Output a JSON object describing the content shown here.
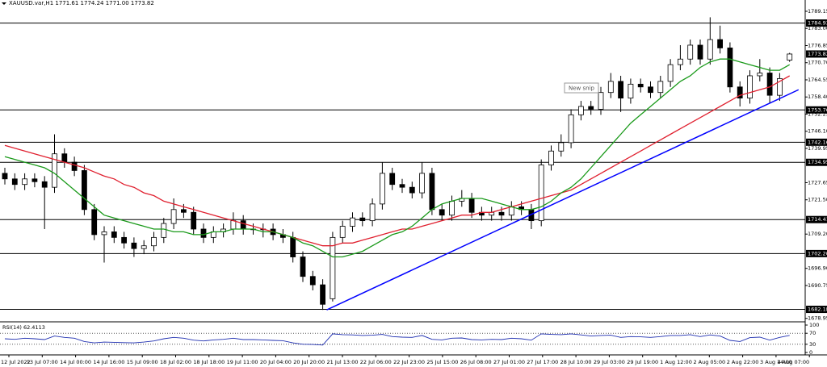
{
  "chart_data": {
    "type": "candlestick",
    "title": "XAUUSD.var,H1  1771.61 1774.24 1771.00 1773.82",
    "tooltip": "New snip",
    "open": [
      1731,
      1729,
      1727,
      1729,
      1728,
      1726,
      1738,
      1735,
      1732,
      1718,
      1709,
      1710,
      1708,
      1706,
      1704,
      1705,
      1708,
      1713,
      1718,
      1717,
      1711,
      1708,
      1710,
      1711,
      1714,
      1711,
      1711,
      1711,
      1709,
      1708,
      1701,
      1694,
      1691,
      1686,
      1708,
      1712,
      1715,
      1714,
      1720,
      1731,
      1727,
      1726,
      1724,
      1731,
      1718,
      1716,
      1721,
      1722,
      1717,
      1716,
      1717,
      1716,
      1719,
      1718,
      1714,
      1734,
      1739,
      1742,
      1752,
      1755,
      1754,
      1760,
      1764,
      1758,
      1763,
      1762,
      1760,
      1764,
      1770,
      1772,
      1777,
      1772,
      1779,
      1776,
      1762,
      1758,
      1766,
      1767,
      1759,
      1771.61
    ],
    "high": [
      1733,
      1731,
      1731,
      1731,
      1730,
      1745,
      1740,
      1737,
      1734,
      1720,
      1712,
      1712,
      1710,
      1708,
      1707,
      1710,
      1715,
      1722,
      1720,
      1719,
      1713,
      1712,
      1713,
      1717,
      1716,
      1713,
      1713,
      1713,
      1711,
      1710,
      1703,
      1696,
      1693,
      1710,
      1714,
      1717,
      1717,
      1722,
      1735,
      1733,
      1729,
      1728,
      1735,
      1733,
      1720,
      1723,
      1725,
      1724,
      1719,
      1719,
      1719,
      1721,
      1721,
      1720,
      1736,
      1741,
      1745,
      1754,
      1757,
      1757,
      1762,
      1767,
      1766,
      1765,
      1765,
      1764,
      1766,
      1772,
      1777,
      1779,
      1779,
      1787,
      1784,
      1778,
      1764,
      1768,
      1772,
      1769,
      1767,
      1774.24
    ],
    "low": [
      1727,
      1725,
      1725,
      1726,
      1711,
      1724,
      1733,
      1730,
      1716,
      1707,
      1699,
      1706,
      1704,
      1701,
      1702,
      1703,
      1706,
      1711,
      1715,
      1709,
      1706,
      1706,
      1708,
      1709,
      1709,
      1709,
      1708,
      1707,
      1706,
      1699,
      1692,
      1689,
      1682,
      1685,
      1706,
      1710,
      1712,
      1712,
      1718,
      1725,
      1724,
      1722,
      1722,
      1716,
      1714,
      1714,
      1719,
      1715,
      1714,
      1714,
      1714,
      1714,
      1716,
      1711,
      1712,
      1732,
      1737,
      1740,
      1750,
      1752,
      1752,
      1758,
      1753,
      1756,
      1760,
      1758,
      1758,
      1762,
      1768,
      1770,
      1770,
      1770,
      1774,
      1760,
      1755,
      1756,
      1764,
      1756,
      1757,
      1771
    ],
    "close": [
      1729,
      1727,
      1729,
      1728,
      1726,
      1738,
      1735,
      1732,
      1718,
      1709,
      1710,
      1708,
      1706,
      1704,
      1705,
      1708,
      1713,
      1718,
      1717,
      1711,
      1708,
      1710,
      1711,
      1714,
      1711,
      1711,
      1711,
      1709,
      1708,
      1701,
      1694,
      1691,
      1684,
      1708,
      1712,
      1715,
      1714,
      1720,
      1731,
      1727,
      1726,
      1724,
      1731,
      1718,
      1716,
      1721,
      1722,
      1717,
      1716,
      1717,
      1716,
      1719,
      1718,
      1714,
      1734,
      1739,
      1742,
      1752,
      1755,
      1754,
      1760,
      1764,
      1758,
      1763,
      1762,
      1760,
      1764,
      1770,
      1772,
      1777,
      1772,
      1779,
      1776,
      1762,
      1758,
      1766,
      1767,
      1759,
      1765,
      1773.82
    ],
    "moving_averages": [
      {
        "color": "#e0202f",
        "values": [
          1741,
          1740,
          1739,
          1738,
          1737,
          1736,
          1735,
          1734,
          1733,
          1731.5,
          1730,
          1729,
          1727,
          1726,
          1724,
          1723,
          1721,
          1720,
          1719,
          1718,
          1717,
          1716,
          1715,
          1714,
          1713,
          1712,
          1711,
          1710,
          1709,
          1708,
          1707,
          1706,
          1705,
          1705,
          1706,
          1706,
          1707,
          1708,
          1709,
          1710,
          1711,
          1711,
          1712,
          1713,
          1714,
          1715,
          1716,
          1716,
          1717,
          1717,
          1718,
          1719,
          1720,
          1721,
          1722,
          1723,
          1724,
          1725,
          1727,
          1729,
          1731,
          1733,
          1735,
          1737,
          1739,
          1741,
          1743,
          1745,
          1747,
          1749,
          1751,
          1753,
          1755,
          1757,
          1759,
          1760,
          1761,
          1762,
          1764,
          1766
        ]
      },
      {
        "color": "#1a9a1a",
        "values": [
          1737,
          1736,
          1735,
          1734,
          1733,
          1731,
          1728,
          1725,
          1722,
          1719,
          1716,
          1715,
          1714,
          1713,
          1712,
          1711,
          1711,
          1710,
          1710,
          1709,
          1709,
          1710,
          1710,
          1711,
          1711,
          1711,
          1710,
          1710,
          1709,
          1708,
          1706,
          1705,
          1703,
          1701,
          1701,
          1702,
          1703,
          1705,
          1707,
          1709,
          1710,
          1712,
          1715,
          1718,
          1720,
          1721,
          1722,
          1722,
          1722,
          1721,
          1720,
          1719,
          1718,
          1718,
          1719,
          1721,
          1724,
          1726,
          1729,
          1733,
          1737,
          1741,
          1745,
          1749,
          1752,
          1755,
          1758,
          1761,
          1764,
          1766,
          1769,
          1771,
          1772,
          1772,
          1771,
          1770,
          1769,
          1768,
          1768,
          1770
        ]
      }
    ],
    "trend_line": {
      "color": "#0000ff",
      "x": [
        32.4,
        79.9
      ],
      "values": [
        1682,
        1761
      ]
    },
    "levels": [
      1784.93,
      1753.76,
      1742.16,
      1734.95,
      1714.41,
      {
        "value": 1702.2,
        "label": "1702.20"
      },
      1682.18
    ],
    "ylim": [
      1678,
      1793.2
    ],
    "yticks": [
      1789.15,
      {
        "value": 1783,
        "label": "1783.00"
      },
      1776.85,
      {
        "value": 1770.7,
        "label": "1770.70"
      },
      1764.55,
      {
        "value": 1758.4,
        "label": "1758.40"
      },
      1752.25,
      {
        "value": 1746.1,
        "label": "1746.10"
      },
      1739.95,
      1727.65,
      {
        "value": 1721.5,
        "label": "1721.50"
      },
      {
        "value": 1709.2,
        "label": "1709.20"
      },
      {
        "value": 1696.9,
        "label": "1696.90"
      },
      1690.75,
      1678.95
    ],
    "x_labels": [
      "12 Jul 2022",
      "13 Jul 07:00",
      "14 Jul 00:00",
      "14 Jul 16:00",
      "15 Jul 09:00",
      "18 Jul 02:00",
      "18 Jul 18:00",
      "19 Jul 11:00",
      "20 Jul 04:00",
      "20 Jul 20:00",
      "21 Jul 13:00",
      "22 Jul 06:00",
      "22 Jul 23:00",
      "25 Jul 15:00",
      "26 Jul 08:00",
      "27 Jul 01:00",
      "27 Jul 17:00",
      "28 Jul 10:00",
      "29 Jul 03:00",
      "29 Jul 19:00",
      "1 Aug 12:00",
      "2 Aug 05:00",
      "2 Aug 22:00",
      "3 Aug 14:00",
      "4 Aug 07:00"
    ],
    "rsi": {
      "label": "RSI(14) 62.4113",
      "color": "#1f2fb0",
      "ylim": [
        0,
        100
      ],
      "yticks": [
        100,
        70,
        30,
        0
      ],
      "levels": [
        70,
        30
      ],
      "values": [
        50,
        48,
        52,
        50,
        47,
        60,
        55,
        52,
        40,
        35,
        38,
        37,
        36,
        35,
        38,
        42,
        50,
        55,
        52,
        45,
        42,
        46,
        48,
        52,
        47,
        47,
        46,
        44,
        43,
        35,
        30,
        29,
        27,
        68,
        65,
        64,
        62,
        63,
        66,
        58,
        56,
        55,
        62,
        48,
        46,
        52,
        53,
        47,
        46,
        48,
        47,
        52,
        50,
        45,
        68,
        66,
        65,
        68,
        64,
        60,
        62,
        63,
        55,
        58,
        57,
        55,
        58,
        62,
        62,
        65,
        58,
        64,
        60,
        44,
        40,
        54,
        56,
        45,
        55,
        62.4113
      ]
    }
  }
}
